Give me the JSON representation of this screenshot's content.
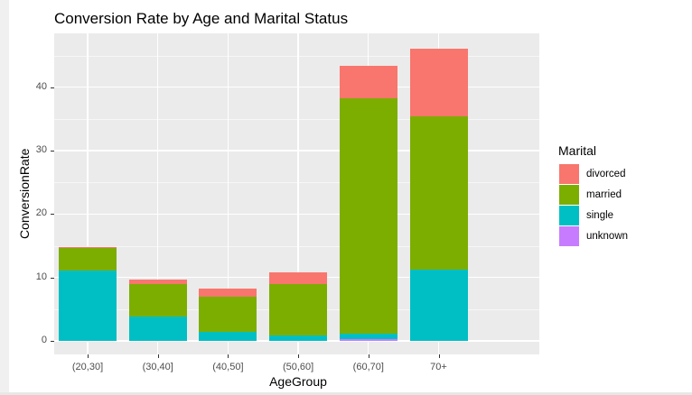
{
  "chart_data": {
    "type": "bar",
    "stacked": true,
    "title": "Conversion Rate by Age and Marital Status",
    "xlabel": "AgeGroup",
    "ylabel": "ConversionRate",
    "categories": [
      "(20,30]",
      "(30,40]",
      "(40,50]",
      "(50,60]",
      "(60,70]",
      "70+"
    ],
    "series": [
      {
        "name": "divorced",
        "color": "#F8766D",
        "values": [
          0.2,
          0.7,
          1.2,
          1.9,
          5.1,
          10.7
        ]
      },
      {
        "name": "married",
        "color": "#7CAE00",
        "values": [
          3.5,
          5.2,
          5.6,
          8.1,
          37.2,
          24.1
        ]
      },
      {
        "name": "single",
        "color": "#00BFC4",
        "values": [
          11.1,
          3.8,
          1.4,
          0.8,
          0.75,
          11.3
        ]
      },
      {
        "name": "unknown",
        "color": "#C77CFF",
        "values": [
          0,
          0,
          0,
          0,
          0.35,
          0
        ]
      }
    ],
    "totals": [
      14.8,
      9.7,
      8.2,
      10.8,
      43.4,
      46.1
    ],
    "yticks": [
      0,
      10,
      20,
      30,
      40
    ],
    "ylim": [
      -2.3,
      48.4
    ],
    "grid": true,
    "legend": {
      "title": "Marital",
      "position": "right",
      "entries": [
        "divorced",
        "married",
        "single",
        "unknown"
      ]
    }
  },
  "labels": {
    "title": "Conversion Rate by Age and Marital Status",
    "xlabel": "AgeGroup",
    "ylabel": "ConversionRate",
    "legend_title": "Marital",
    "yticks": [
      "0",
      "10",
      "20",
      "30",
      "40"
    ],
    "xticks": [
      "(20,30]",
      "(30,40]",
      "(40,50]",
      "(50,60]",
      "(60,70]",
      "70+"
    ],
    "legend": [
      "divorced",
      "married",
      "single",
      "unknown"
    ]
  }
}
